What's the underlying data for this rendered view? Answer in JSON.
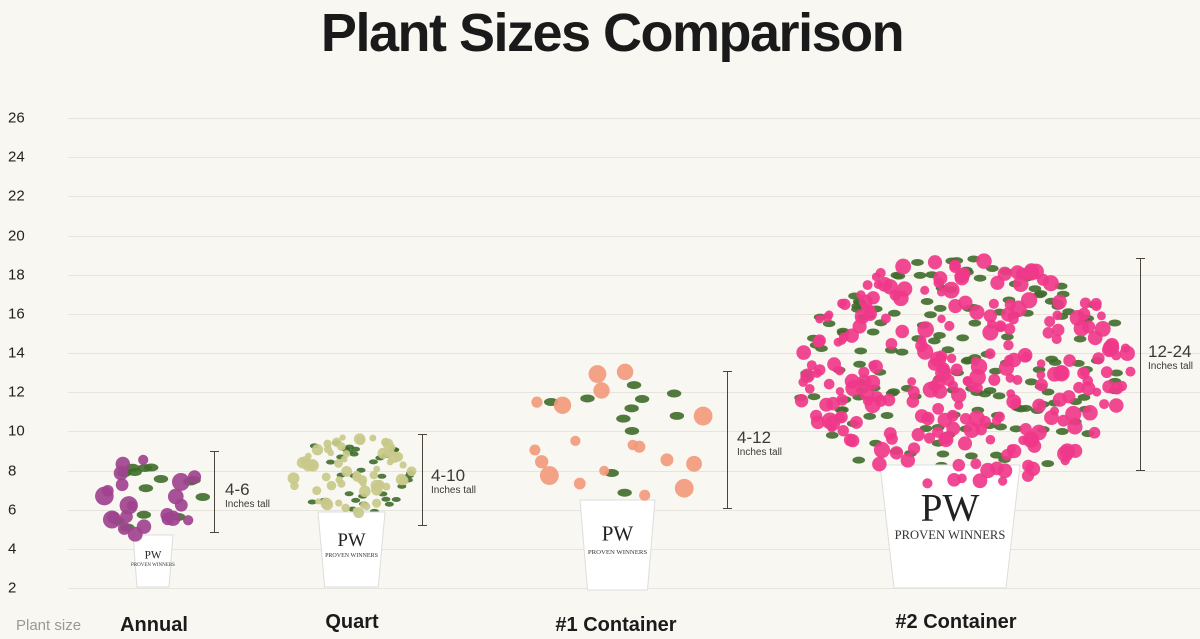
{
  "title": "Plant Sizes Comparison",
  "axis_label": "Plant size",
  "colors": {
    "background": "#f8f7f2",
    "annual": "#a0428f",
    "quart": "#c8c98a",
    "container1": "#f29a7c",
    "container2": "#f0388a",
    "leaf": "#3f6b2a",
    "pot": "#ffffff"
  },
  "chart_data": {
    "type": "bar",
    "title": "Plant Sizes Comparison",
    "xlabel": "Plant size",
    "ylabel": "",
    "yticks": [
      2,
      4,
      6,
      8,
      10,
      12,
      14,
      16,
      18,
      20,
      22,
      24,
      26
    ],
    "ylim": [
      2,
      26
    ],
    "grid": true,
    "categories": [
      "Annual",
      "Quart",
      "#1 Container",
      "#2 Container"
    ],
    "ranges": [
      {
        "category": "Annual",
        "label": "4-6",
        "unit": "Inches tall",
        "min": 4,
        "max": 6
      },
      {
        "category": "Quart",
        "label": "4-10",
        "unit": "Inches tall",
        "min": 4,
        "max": 10
      },
      {
        "category": "#1 Container",
        "label": "4-12",
        "unit": "Inches tall",
        "min": 4,
        "max": 12
      },
      {
        "category": "#2 Container",
        "label": "12-24",
        "unit": "Inches tall",
        "min": 12,
        "max": 24
      }
    ]
  },
  "pot_brand": "PROVEN WINNERS"
}
